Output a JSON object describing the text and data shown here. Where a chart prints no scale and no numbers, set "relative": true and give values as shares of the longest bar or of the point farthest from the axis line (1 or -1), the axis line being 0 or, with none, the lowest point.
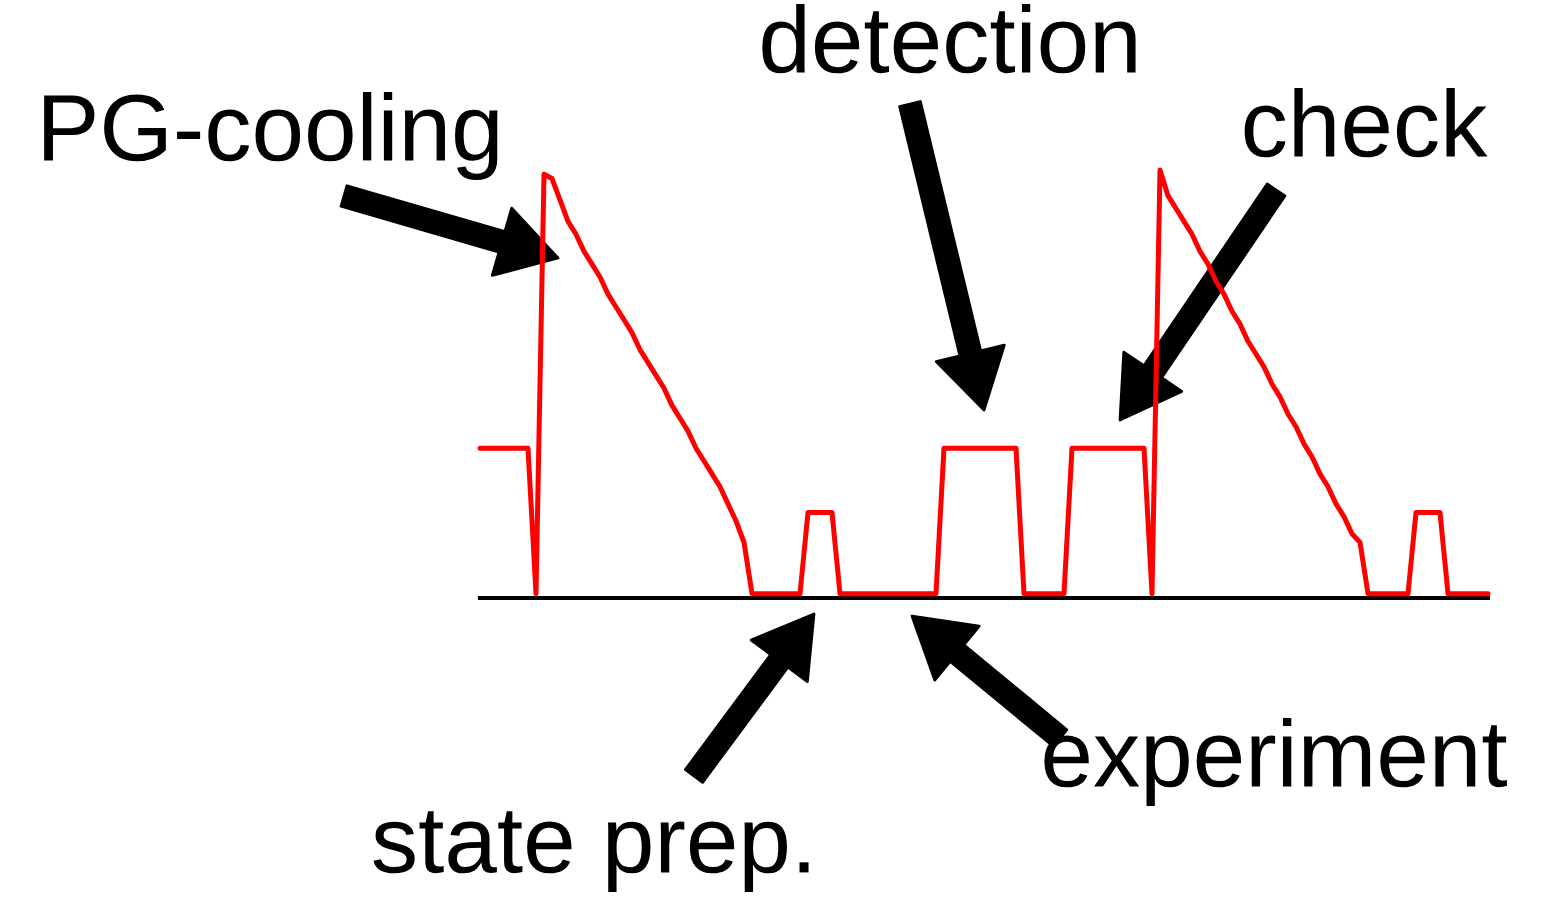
{
  "chart_data": {
    "type": "line",
    "relative": true,
    "categories": [
      null,
      null,
      null,
      null,
      null,
      null,
      null,
      null,
      null,
      null,
      null,
      null,
      null,
      null,
      null,
      null,
      null,
      null,
      null,
      null,
      null,
      null,
      null,
      null,
      null,
      null,
      null,
      null,
      null,
      null,
      null,
      null,
      null,
      null,
      null,
      null,
      null,
      null,
      null,
      null,
      null,
      null,
      null,
      null,
      null,
      null,
      null,
      null,
      null,
      null,
      null,
      null,
      null,
      null,
      null,
      null,
      null,
      null,
      null,
      null,
      null,
      null,
      null,
      null,
      null,
      null,
      null,
      null,
      null,
      null,
      null,
      null,
      null,
      null,
      null,
      null,
      null,
      null,
      null,
      null,
      null,
      null,
      null,
      null,
      null,
      null,
      null,
      null,
      null,
      null,
      null,
      null,
      null,
      null,
      null,
      null,
      null,
      null,
      null,
      null,
      null,
      null,
      null,
      null,
      null,
      null,
      null,
      null,
      null,
      null,
      null,
      null,
      null,
      null,
      null,
      null,
      null,
      null,
      null,
      null,
      null,
      null,
      null,
      null,
      null,
      null,
      null
    ],
    "series": [
      {
        "color": "#ff0000",
        "values": [
          0.35,
          0.35,
          0.35,
          0.35,
          0.35,
          0.35,
          0.35,
          0.01,
          0.99,
          0.98,
          0.93,
          0.88,
          0.85,
          0.81,
          0.78,
          0.75,
          0.71,
          0.68,
          0.65,
          0.62,
          0.58,
          0.55,
          0.52,
          0.49,
          0.45,
          0.42,
          0.39,
          0.35,
          0.32,
          0.29,
          0.26,
          0.22,
          0.18,
          0.13,
          0.01,
          0.01,
          0.01,
          0.01,
          0.01,
          0.01,
          0.01,
          0.2,
          0.2,
          0.2,
          0.2,
          0.01,
          0.01,
          0.01,
          0.01,
          0.01,
          0.01,
          0.01,
          0.01,
          0.01,
          0.01,
          0.01,
          0.01,
          0.01,
          0.35,
          0.35,
          0.35,
          0.35,
          0.35,
          0.35,
          0.35,
          0.35,
          0.35,
          0.35,
          0.01,
          0.01,
          0.01,
          0.01,
          0.01,
          0.01,
          0.35,
          0.35,
          0.35,
          0.35,
          0.35,
          0.35,
          0.35,
          0.35,
          0.35,
          0.35,
          0.01,
          1.0,
          0.94,
          0.91,
          0.88,
          0.85,
          0.81,
          0.78,
          0.74,
          0.71,
          0.67,
          0.64,
          0.6,
          0.57,
          0.54,
          0.5,
          0.47,
          0.43,
          0.4,
          0.36,
          0.33,
          0.29,
          0.26,
          0.22,
          0.19,
          0.15,
          0.13,
          0.01,
          0.01,
          0.01,
          0.01,
          0.01,
          0.01,
          0.2,
          0.2,
          0.2,
          0.2,
          0.01,
          0.01,
          0.01,
          0.01,
          0.01,
          0.01
        ]
      }
    ],
    "annotations": [
      "PG-cooling",
      "detection",
      "check",
      "state prep.",
      "experiment"
    ]
  }
}
